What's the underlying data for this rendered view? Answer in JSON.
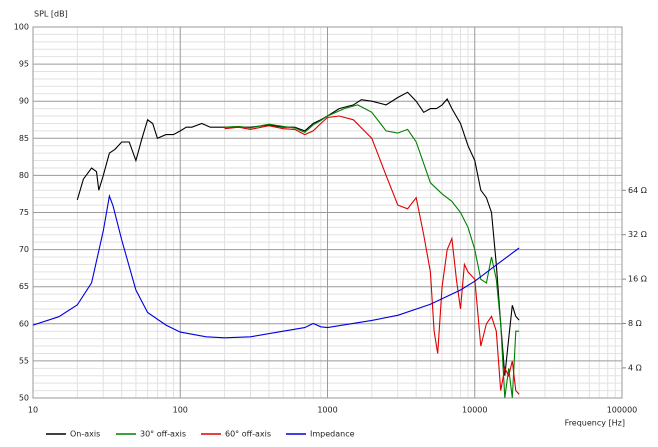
{
  "chart_data": {
    "type": "line",
    "ylabel": "SPL [dB]",
    "xlabel": "Frequency [Hz]",
    "xscale": "log",
    "y2scale": "log",
    "grid": true,
    "legend": "bottom",
    "xlim": [
      10,
      100000
    ],
    "xticks": [
      10,
      100,
      1000,
      10000,
      100000
    ],
    "ylim": [
      50,
      100
    ],
    "yticks": [
      50,
      55,
      60,
      65,
      70,
      75,
      80,
      85,
      90,
      95,
      100
    ],
    "y2lim": [
      2.5,
      820
    ],
    "y2ticks": [
      {
        "value": 4,
        "label": "4 Ω"
      },
      {
        "value": 8,
        "label": "8 Ω"
      },
      {
        "value": 16,
        "label": "16 Ω"
      },
      {
        "value": 32,
        "label": "32 Ω"
      },
      {
        "value": 64,
        "label": "64 Ω"
      }
    ],
    "series": [
      {
        "name": "On-axis",
        "color": "#000000",
        "x": [
          20,
          22,
          25,
          27,
          28,
          30,
          33,
          36,
          40,
          45,
          50,
          55,
          60,
          65,
          70,
          80,
          90,
          100,
          110,
          120,
          140,
          160,
          200,
          250,
          300,
          400,
          500,
          600,
          700,
          800,
          900,
          1000,
          1200,
          1500,
          1700,
          2000,
          2500,
          3000,
          3500,
          4000,
          4500,
          5000,
          5500,
          6000,
          6500,
          7000,
          8000,
          9000,
          10000,
          11000,
          12000,
          13000,
          14000,
          15000,
          16000,
          17000,
          18000,
          19000,
          20000
        ],
        "values": [
          76.7,
          79.5,
          81,
          80.5,
          78,
          80,
          83,
          83.5,
          84.5,
          84.5,
          82,
          85,
          87.5,
          87,
          85,
          85.5,
          85.5,
          86,
          86.5,
          86.5,
          87,
          86.5,
          86.5,
          86.5,
          86.5,
          86.8,
          86.5,
          86.5,
          86,
          87,
          87.5,
          88,
          89,
          89.5,
          90.2,
          90,
          89.5,
          90.5,
          91.2,
          90,
          88.5,
          89,
          89,
          89.5,
          90.3,
          89,
          87,
          84,
          82,
          78,
          77,
          75,
          68,
          60,
          53,
          58,
          62.5,
          61,
          60.5
        ]
      },
      {
        "name": "30° off-axis",
        "color": "#008000",
        "x": [
          200,
          250,
          300,
          400,
          500,
          600,
          700,
          800,
          900,
          1000,
          1300,
          1600,
          2000,
          2500,
          3000,
          3500,
          4000,
          5000,
          6000,
          7000,
          8000,
          9000,
          10000,
          11000,
          12000,
          13000,
          14000,
          15000,
          16000,
          17000,
          18000,
          19000,
          20000
        ],
        "values": [
          86.5,
          86.6,
          86.4,
          86.9,
          86.6,
          86.4,
          85.8,
          86.8,
          87.4,
          88,
          89,
          89.5,
          88.5,
          86,
          85.7,
          86.2,
          84.5,
          79,
          77.5,
          76.5,
          75,
          73,
          70,
          66,
          65.5,
          69,
          66,
          60,
          50,
          54,
          50,
          59,
          59
        ]
      },
      {
        "name": "60° off-axis",
        "color": "#e00000",
        "x": [
          200,
          250,
          300,
          400,
          500,
          600,
          700,
          800,
          900,
          1000,
          1200,
          1500,
          2000,
          2500,
          3000,
          3500,
          4000,
          4500,
          5000,
          5300,
          5600,
          6000,
          6500,
          7000,
          7500,
          8000,
          8500,
          9000,
          10000,
          11000,
          12000,
          13000,
          14000,
          15000,
          16000,
          17000,
          18000,
          19000,
          20000
        ],
        "values": [
          86.3,
          86.5,
          86.2,
          86.7,
          86.3,
          86.2,
          85.5,
          86,
          87,
          87.8,
          88,
          87.5,
          85,
          80,
          76,
          75.5,
          77,
          72,
          67,
          59,
          56,
          65,
          70,
          71.5,
          66,
          62,
          68,
          67,
          66,
          57,
          60,
          61,
          59,
          51,
          54,
          53,
          55,
          51,
          50.5
        ]
      },
      {
        "name": "Impedance",
        "color": "#0000e0",
        "axis": "y2",
        "x": [
          10,
          15,
          20,
          25,
          30,
          33,
          35,
          40,
          50,
          60,
          80,
          100,
          150,
          200,
          300,
          500,
          700,
          800,
          900,
          1000,
          2000,
          3000,
          5000,
          8000,
          10000,
          15000,
          20000
        ],
        "values": [
          7.8,
          8.9,
          10.7,
          15.1,
          34,
          58.6,
          50,
          29.5,
          13.5,
          9.5,
          7.8,
          7.0,
          6.5,
          6.4,
          6.5,
          7.1,
          7.5,
          8.0,
          7.6,
          7.5,
          8.4,
          9.1,
          10.8,
          13.5,
          15.5,
          21,
          26
        ]
      }
    ]
  }
}
